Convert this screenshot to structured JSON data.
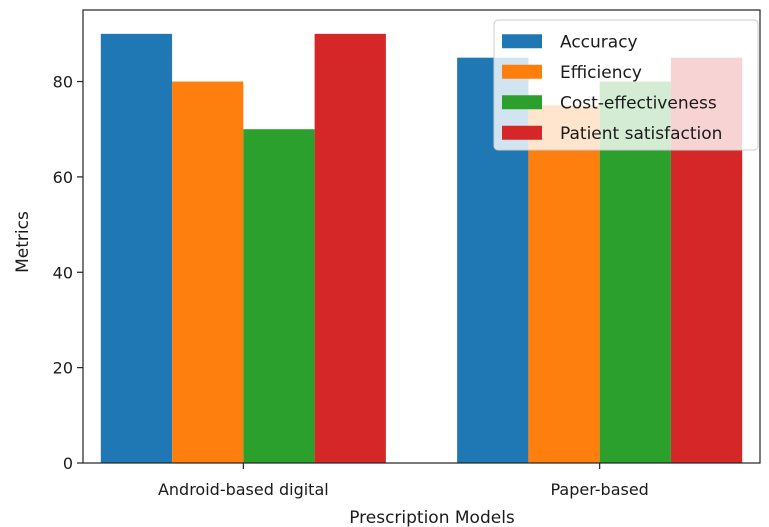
{
  "chart_data": {
    "type": "bar",
    "title": "",
    "xlabel": "Prescription Models",
    "ylabel": "Metrics",
    "categories": [
      "Android-based digital",
      "Paper-based"
    ],
    "series": [
      {
        "name": "Accuracy",
        "values": [
          90,
          85
        ],
        "color": "#1f77b4"
      },
      {
        "name": "Efficiency",
        "values": [
          80,
          75
        ],
        "color": "#ff7f0e"
      },
      {
        "name": "Cost-effectiveness",
        "values": [
          70,
          80
        ],
        "color": "#2ca02c"
      },
      {
        "name": "Patient satisfaction",
        "values": [
          90,
          85
        ],
        "color": "#d62728"
      }
    ],
    "ylim": [
      0,
      95
    ],
    "yticks": [
      0,
      20,
      40,
      60,
      80
    ],
    "grid": false,
    "legend_position": "top-right"
  }
}
